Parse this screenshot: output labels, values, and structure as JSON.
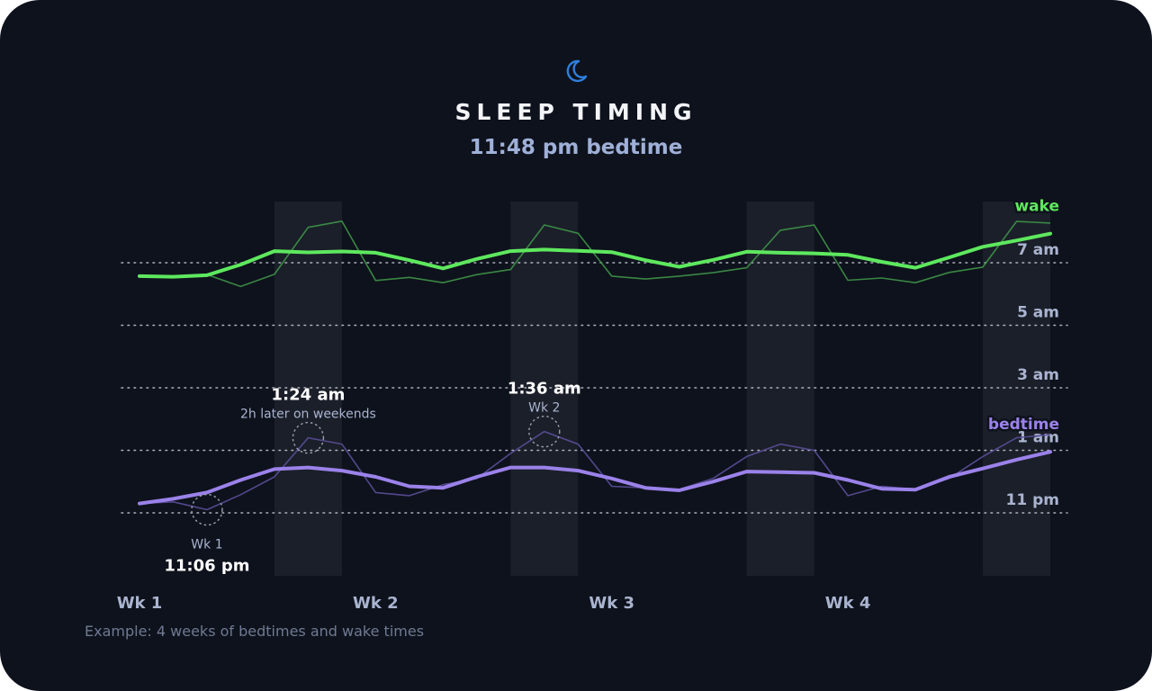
{
  "title": "SLEEP TIMING",
  "subtitle": "11:48 pm bedtime",
  "footnote": "Example: 4 weeks of bedtimes and wake times",
  "icons": {
    "header": "moon-icon"
  },
  "colors": {
    "background": "#0e121c",
    "wake": "#5ee85e",
    "wake_raw": "#3e9448",
    "bedtime": "#9b82ea",
    "bedtime_raw": "#5a4f9a",
    "weekend_band": "#1b1f29",
    "grid": "#c7ccd8",
    "axis_label": "#aab4d0"
  },
  "chart_data": {
    "type": "line",
    "title": "SLEEP TIMING",
    "subtitle": "11:48 pm bedtime",
    "x_unit": "day",
    "x_range": [
      1,
      28
    ],
    "x_tick_labels": [
      {
        "x": 1,
        "label": "Wk 1"
      },
      {
        "x": 8,
        "label": "Wk 2"
      },
      {
        "x": 15,
        "label": "Wk 3"
      },
      {
        "x": 22,
        "label": "Wk 4"
      }
    ],
    "weekend_bands": [
      [
        5,
        7
      ],
      [
        12,
        14
      ],
      [
        19,
        21
      ],
      [
        26,
        28
      ]
    ],
    "y_unit": "clock time (hours)",
    "y_range": [
      21.5,
      32.3
    ],
    "y_ticks": [
      {
        "value": 23,
        "label": "11 pm"
      },
      {
        "value": 25,
        "label": "1 am"
      },
      {
        "value": 27,
        "label": "3 am"
      },
      {
        "value": 29,
        "label": "5 am"
      },
      {
        "value": 31,
        "label": "7 am"
      }
    ],
    "grid": "dotted horizontal",
    "series": [
      {
        "name": "wake",
        "label_position": "end",
        "x": [
          1,
          2,
          3,
          4,
          5,
          6,
          7,
          8,
          9,
          10,
          11,
          12,
          13,
          14,
          15,
          16,
          17,
          18,
          19,
          20,
          21,
          22,
          23,
          24,
          25,
          26,
          27,
          28
        ],
        "raw": [
          30.57,
          30.57,
          30.62,
          30.24,
          30.63,
          32.13,
          32.33,
          30.43,
          30.53,
          30.36,
          30.62,
          30.78,
          32.21,
          31.94,
          30.57,
          30.48,
          30.57,
          30.68,
          30.84,
          32.04,
          32.21,
          30.44,
          30.51,
          30.36,
          30.69,
          30.86,
          32.32,
          32.27
        ],
        "trend": [
          30.57,
          30.55,
          30.6,
          30.94,
          31.37,
          31.33,
          31.36,
          31.32,
          31.08,
          30.82,
          31.12,
          31.37,
          31.42,
          31.38,
          31.34,
          31.08,
          30.87,
          31.09,
          31.35,
          31.32,
          31.3,
          31.25,
          31.03,
          30.84,
          31.17,
          31.51,
          31.71,
          31.93
        ]
      },
      {
        "name": "bedtime",
        "label_position": "end",
        "x": [
          1,
          2,
          3,
          4,
          5,
          6,
          7,
          8,
          9,
          10,
          11,
          12,
          13,
          14,
          15,
          16,
          17,
          18,
          19,
          20,
          21,
          22,
          23,
          24,
          25,
          26,
          27,
          28
        ],
        "raw": [
          23.3,
          23.35,
          23.1,
          23.58,
          24.15,
          25.4,
          25.2,
          23.65,
          23.55,
          23.9,
          24.1,
          24.9,
          25.6,
          25.2,
          23.85,
          23.8,
          23.75,
          24.1,
          24.8,
          25.2,
          25.0,
          23.55,
          23.85,
          23.75,
          24.1,
          24.8,
          25.4,
          25.5
        ],
        "trend": [
          23.3,
          23.45,
          23.65,
          24.05,
          24.4,
          24.45,
          24.35,
          24.15,
          23.85,
          23.8,
          24.15,
          24.45,
          24.45,
          24.35,
          24.1,
          23.8,
          23.72,
          24.0,
          24.32,
          24.3,
          24.28,
          24.05,
          23.77,
          23.74,
          24.15,
          24.42,
          24.7,
          24.95
        ]
      }
    ],
    "annotations": [
      {
        "series": "bedtime",
        "x": 3,
        "value": 23.1,
        "time": "11:06 pm",
        "note": "Wk 1",
        "side": "below"
      },
      {
        "series": "bedtime",
        "x": 6,
        "value": 25.4,
        "time": "1:24 am",
        "note": "2h later on weekends",
        "side": "above"
      },
      {
        "series": "bedtime",
        "x": 13,
        "value": 25.6,
        "time": "1:36 am",
        "note": "Wk 2",
        "side": "above"
      }
    ]
  }
}
